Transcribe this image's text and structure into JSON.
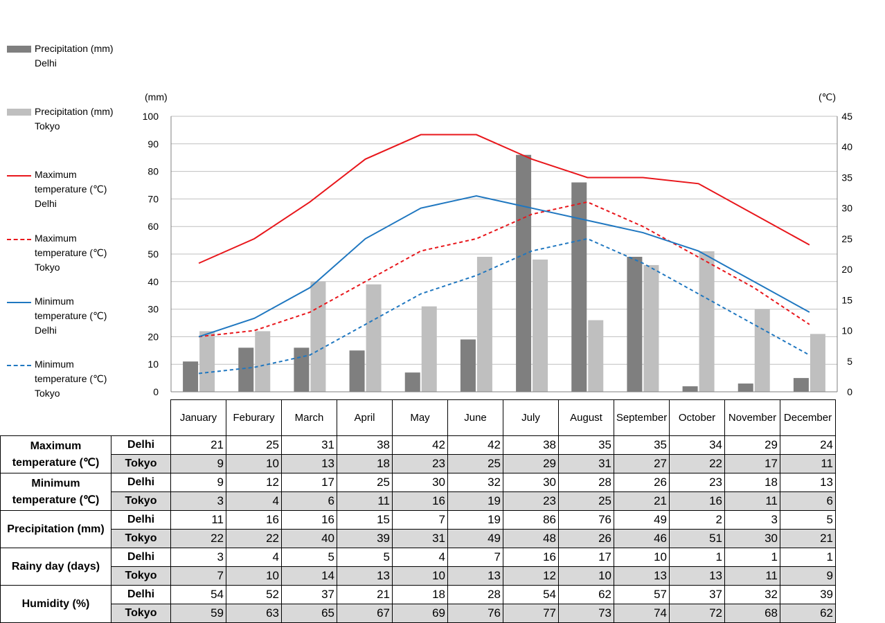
{
  "legend": [
    {
      "type": "bar",
      "color": "#7f7f7f",
      "label": "Precipitation (mm)\nDelhi"
    },
    {
      "type": "bar",
      "color": "#bfbfbf",
      "label": "Precipitation (mm)\nTokyo"
    },
    {
      "type": "line",
      "color": "#e8161b",
      "dash": false,
      "label": "Maximum\ntemperature (℃)\nDelhi"
    },
    {
      "type": "line",
      "color": "#e8161b",
      "dash": true,
      "label": "Maximum\ntemperature (℃)\nTokyo"
    },
    {
      "type": "line",
      "color": "#1f77c0",
      "dash": false,
      "label": "Minimum\ntemperature (℃)\nDelhi"
    },
    {
      "type": "line",
      "color": "#1f77c0",
      "dash": true,
      "label": "Minimum\ntemperature (℃)\nTokyo"
    }
  ],
  "chart_data": {
    "type": "bar",
    "categories": [
      "January",
      "Feburary",
      "March",
      "April",
      "May",
      "June",
      "July",
      "August",
      "September",
      "October",
      "November",
      "December"
    ],
    "y_left": {
      "label": "(mm)",
      "range": [
        0,
        100
      ],
      "ticks": [
        0,
        10,
        20,
        30,
        40,
        50,
        60,
        70,
        80,
        90,
        100
      ]
    },
    "y_right": {
      "label": "(℃)",
      "range": [
        0,
        45
      ],
      "ticks": [
        0,
        5,
        10,
        15,
        20,
        25,
        30,
        35,
        40,
        45
      ]
    },
    "grid": true,
    "bar_series": [
      {
        "name": "Precipitation (mm) Delhi",
        "color": "#7f7f7f",
        "values": [
          11,
          16,
          16,
          15,
          7,
          19,
          86,
          76,
          49,
          2,
          3,
          5
        ]
      },
      {
        "name": "Precipitation (mm) Tokyo",
        "color": "#bfbfbf",
        "values": [
          22,
          22,
          40,
          39,
          31,
          49,
          48,
          26,
          46,
          51,
          30,
          21
        ]
      }
    ],
    "line_series": [
      {
        "name": "Maximum temperature (℃) Delhi",
        "color": "#e8161b",
        "dash": false,
        "values": [
          21,
          25,
          31,
          38,
          42,
          42,
          38,
          35,
          35,
          34,
          29,
          24
        ]
      },
      {
        "name": "Maximum temperature (℃) Tokyo",
        "color": "#e8161b",
        "dash": true,
        "values": [
          9,
          10,
          13,
          18,
          23,
          25,
          29,
          31,
          27,
          22,
          17,
          11
        ]
      },
      {
        "name": "Minimum temperature (℃) Delhi",
        "color": "#1f77c0",
        "dash": false,
        "values": [
          9,
          12,
          17,
          25,
          30,
          32,
          30,
          28,
          26,
          23,
          18,
          13
        ]
      },
      {
        "name": "Minimum temperature (℃) Tokyo",
        "color": "#1f77c0",
        "dash": true,
        "values": [
          3,
          4,
          6,
          11,
          16,
          19,
          23,
          25,
          21,
          16,
          11,
          6
        ]
      }
    ]
  },
  "table": {
    "months": [
      "January",
      "Feburary",
      "March",
      "April",
      "May",
      "June",
      "July",
      "August",
      "September",
      "October",
      "November",
      "December"
    ],
    "groups": [
      {
        "label": "Maximum\ntemperature (℃)",
        "rows": [
          {
            "city": "Delhi",
            "values": [
              "21",
              "25",
              "31",
              "38",
              "42",
              "42",
              "38",
              "35",
              "35",
              "34",
              "29",
              "24"
            ]
          },
          {
            "city": "Tokyo",
            "values": [
              "9",
              "10",
              "13",
              "18",
              "23",
              "25",
              "29",
              "31",
              "27",
              "22",
              "17",
              "11"
            ]
          }
        ]
      },
      {
        "label": "Minimum\ntemperature (℃)",
        "rows": [
          {
            "city": "Delhi",
            "values": [
              "9",
              "12",
              "17",
              "25",
              "30",
              "32",
              "30",
              "28",
              "26",
              "23",
              "18",
              "13"
            ]
          },
          {
            "city": "Tokyo",
            "values": [
              "3",
              "4",
              "6",
              "11",
              "16",
              "19",
              "23",
              "25",
              "21",
              "16",
              "11",
              "6"
            ]
          }
        ]
      },
      {
        "label": "Precipitation (mm)",
        "rows": [
          {
            "city": "Delhi",
            "values": [
              "11",
              "16",
              "16",
              "15",
              "7",
              "19",
              "86",
              "76",
              "49",
              "2",
              "3",
              "5"
            ]
          },
          {
            "city": "Tokyo",
            "values": [
              "22",
              "22",
              "40",
              "39",
              "31",
              "49",
              "48",
              "26",
              "46",
              "51",
              "30",
              "21"
            ]
          }
        ]
      },
      {
        "label": "Rainy day (days)",
        "rows": [
          {
            "city": "Delhi",
            "values": [
              "3",
              "4",
              "5",
              "5",
              "4",
              "7",
              "16",
              "17",
              "10",
              "1",
              "1",
              "1"
            ]
          },
          {
            "city": "Tokyo",
            "values": [
              "7",
              "10",
              "14",
              "13",
              "10",
              "13",
              "12",
              "10",
              "13",
              "13",
              "11",
              "9"
            ]
          }
        ]
      },
      {
        "label": "Humidity (%)",
        "rows": [
          {
            "city": "Delhi",
            "values": [
              "54",
              "52",
              "37",
              "21",
              "18",
              "28",
              "54",
              "62",
              "57",
              "37",
              "32",
              "39"
            ]
          },
          {
            "city": "Tokyo",
            "values": [
              "59",
              "63",
              "65",
              "67",
              "69",
              "76",
              "77",
              "73",
              "74",
              "72",
              "68",
              "62"
            ]
          }
        ]
      }
    ]
  }
}
